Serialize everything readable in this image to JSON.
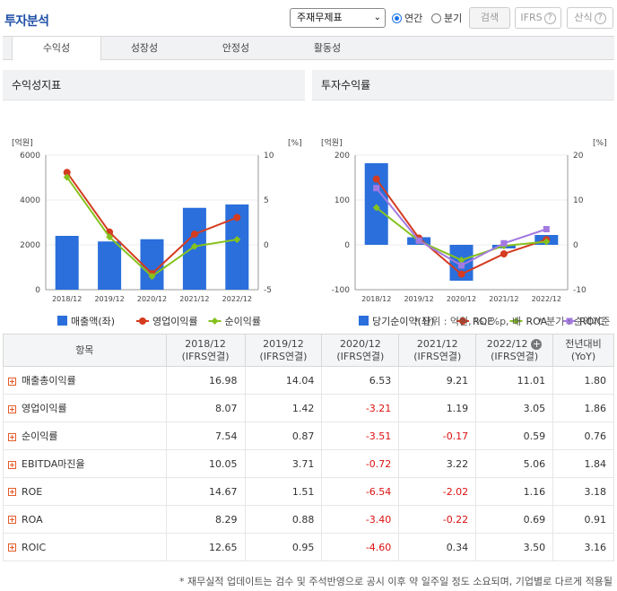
{
  "header": {
    "title": "투자분석",
    "select_value": "주재무제표",
    "radio_annual": "연간",
    "radio_quarter": "분기",
    "search_label": "검색",
    "ifrs_label": "IFRS",
    "calc_label": "산식"
  },
  "tabs": [
    "수익성",
    "성장성",
    "안정성",
    "활동성"
  ],
  "left_panel": {
    "title": "수익성지표",
    "left_unit": "[억원]",
    "right_unit": "[%]",
    "left_ticks": [
      "6000",
      "4000",
      "2000",
      "0"
    ],
    "right_ticks": [
      "10",
      "5",
      "0",
      "-5"
    ],
    "legend": [
      "매출액(좌)",
      "영업이익률",
      "순이익률"
    ]
  },
  "right_panel": {
    "title": "투자수익률",
    "left_unit": "[억원]",
    "right_unit": "[%]",
    "left_ticks": [
      "200",
      "100",
      "0",
      "-100"
    ],
    "right_ticks": [
      "20",
      "10",
      "0",
      "-10"
    ],
    "legend": [
      "당기순이익(좌)",
      "ROE",
      "ROA",
      "ROIC"
    ]
  },
  "chart_data": [
    {
      "type": "bar",
      "title": "수익성지표",
      "categories": [
        "2018/12",
        "2019/12",
        "2020/12",
        "2021/12",
        "2022/12"
      ],
      "ylim_left": [
        0,
        6000
      ],
      "ylim_right": [
        -5,
        10
      ],
      "series": [
        {
          "name": "매출액(좌)",
          "type": "bar",
          "axis": "left",
          "color": "#2a6fdc",
          "values": [
            2400,
            2150,
            2250,
            3650,
            3800
          ]
        },
        {
          "name": "영업이익률",
          "type": "line",
          "axis": "right",
          "color": "#d43b1f",
          "values": [
            8.07,
            1.42,
            -3.21,
            1.19,
            3.05
          ]
        },
        {
          "name": "순이익률",
          "type": "line",
          "axis": "right",
          "color": "#86c21e",
          "values": [
            7.54,
            0.87,
            -3.51,
            -0.17,
            0.59
          ]
        }
      ]
    },
    {
      "type": "bar",
      "title": "투자수익률",
      "categories": [
        "2018/12",
        "2019/12",
        "2020/12",
        "2021/12",
        "2022/12"
      ],
      "ylim_left": [
        -100,
        200
      ],
      "ylim_right": [
        -10,
        20
      ],
      "series": [
        {
          "name": "당기순이익(좌)",
          "type": "bar",
          "axis": "left",
          "color": "#2a6fdc",
          "values": [
            182,
            17,
            -80,
            -8,
            22
          ]
        },
        {
          "name": "ROE",
          "type": "line",
          "axis": "right",
          "color": "#d43b1f",
          "values": [
            14.67,
            1.51,
            -6.54,
            -2.02,
            1.16
          ]
        },
        {
          "name": "ROA",
          "type": "line",
          "axis": "right",
          "color": "#86c21e",
          "values": [
            8.29,
            0.88,
            -3.4,
            -0.22,
            0.69
          ]
        },
        {
          "name": "ROIC",
          "type": "line",
          "axis": "right",
          "color": "#a37ae0",
          "values": [
            12.65,
            0.95,
            -4.6,
            0.34,
            3.5
          ]
        }
      ]
    }
  ],
  "units_left": "* 단위 : 억원, %, %p, 배",
  "units_right": "* 분기 : 순액기준",
  "table": {
    "headers": [
      "항목",
      [
        "2018/12",
        "(IFRS연결)"
      ],
      [
        "2019/12",
        "(IFRS연결)"
      ],
      [
        "2020/12",
        "(IFRS연결)"
      ],
      [
        "2021/12",
        "(IFRS연결)"
      ],
      [
        "2022/12",
        "(IFRS연결)"
      ],
      [
        "전년대비",
        "(YoY)"
      ]
    ],
    "rows": [
      {
        "item": "매출총이익률",
        "values": [
          "16.98",
          "14.04",
          "6.53",
          "9.21",
          "11.01",
          "1.80"
        ]
      },
      {
        "item": "영업이익률",
        "values": [
          "8.07",
          "1.42",
          "-3.21",
          "1.19",
          "3.05",
          "1.86"
        ]
      },
      {
        "item": "순이익률",
        "values": [
          "7.54",
          "0.87",
          "-3.51",
          "-0.17",
          "0.59",
          "0.76"
        ]
      },
      {
        "item": "EBITDA마진율",
        "values": [
          "10.05",
          "3.71",
          "-0.72",
          "3.22",
          "5.06",
          "1.84"
        ]
      },
      {
        "item": "ROE",
        "values": [
          "14.67",
          "1.51",
          "-6.54",
          "-2.02",
          "1.16",
          "3.18"
        ]
      },
      {
        "item": "ROA",
        "values": [
          "8.29",
          "0.88",
          "-3.40",
          "-0.22",
          "0.69",
          "0.91"
        ]
      },
      {
        "item": "ROIC",
        "values": [
          "12.65",
          "0.95",
          "-4.60",
          "0.34",
          "3.50",
          "3.16"
        ]
      }
    ]
  },
  "footer": "* 재무실적 업데이트는 검수 및 주석반영으로 공시 이후 약 일주일 정도 소요되며, 기업별로 다르게 적용될"
}
